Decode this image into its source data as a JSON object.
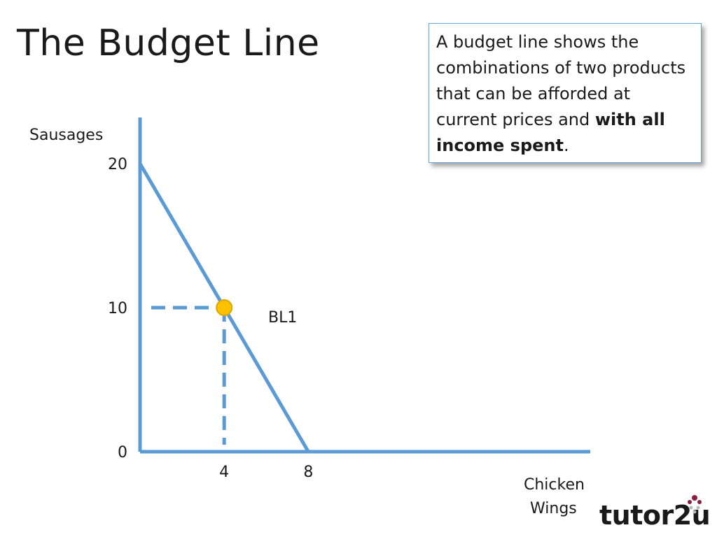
{
  "title": "The Budget Line",
  "note": {
    "text_before": "A budget line shows the combinations of two products that can be afforded at current prices and ",
    "text_bold": "with all income spent",
    "text_after": "."
  },
  "logo": {
    "text": "tutor2u"
  },
  "chart_data": {
    "type": "line",
    "ylabel": "Sausages",
    "xlabel": "Chicken Wings",
    "xlim": [
      0,
      21.4
    ],
    "ylim": [
      0,
      20
    ],
    "y_ticks": [
      "0",
      "10",
      "20"
    ],
    "x_ticks": [
      "4",
      "8"
    ],
    "series": [
      {
        "name": "BL1",
        "points": [
          [
            0,
            20
          ],
          [
            8,
            0
          ]
        ],
        "color": "#5b9bd5"
      }
    ],
    "highlight_point": {
      "x": 4,
      "y": 10,
      "color": "#ffc000"
    },
    "guide_lines": "dashed",
    "grid": false
  }
}
